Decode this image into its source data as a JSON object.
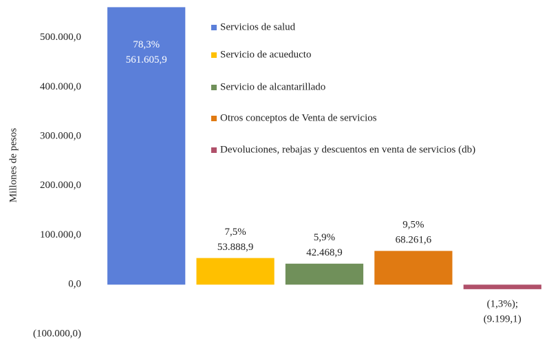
{
  "chart_data": {
    "type": "bar",
    "y_label": "Millones  de pesos",
    "categories": [
      "Servicios de salud",
      "Servicio de acueducto",
      "Servicio de alcantarillado",
      "Otros conceptos de Venta de servicios",
      "Devoluciones, rebajas y descuentos en venta de servicios (db)"
    ],
    "values": [
      561605.9,
      53888.9,
      42468.9,
      68261.6,
      -9199.1
    ],
    "value_labels": [
      "561.605,9",
      "53.888,9",
      "42.468,9",
      "68.261,6",
      "(9.199,1)"
    ],
    "percents": [
      78.3,
      7.5,
      5.9,
      9.5,
      -1.3
    ],
    "percent_labels": [
      "78,3%",
      "7,5%",
      "5,9%",
      "9,5%",
      "(1,3%);"
    ],
    "colors": [
      "#5b7fd9",
      "#ffc000",
      "#70905a",
      "#e07a12",
      "#b0506a"
    ],
    "ylim": [
      -100000,
      565000
    ],
    "yticks": [
      {
        "value": -100000,
        "label": "(100.000,0)"
      },
      {
        "value": 0,
        "label": "0,0"
      },
      {
        "value": 100000,
        "label": "100.000,0"
      },
      {
        "value": 200000,
        "label": "200.000,0"
      },
      {
        "value": 300000,
        "label": "300.000,0"
      },
      {
        "value": 400000,
        "label": "400.000,0"
      },
      {
        "value": 500000,
        "label": "500.000,0"
      }
    ],
    "grid": false,
    "legend": "upper right"
  }
}
